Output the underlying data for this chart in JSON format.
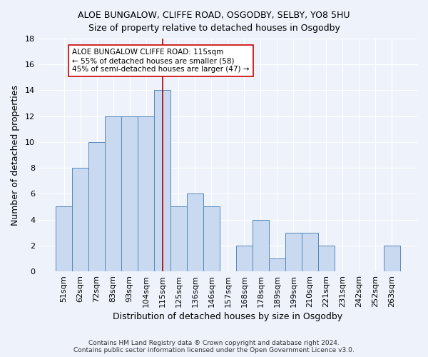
{
  "title1": "ALOE BUNGALOW, CLIFFE ROAD, OSGODBY, SELBY, YO8 5HU",
  "title2": "Size of property relative to detached houses in Osgodby",
  "xlabel": "Distribution of detached houses by size in Osgodby",
  "ylabel": "Number of detached properties",
  "categories": [
    "51sqm",
    "62sqm",
    "72sqm",
    "83sqm",
    "93sqm",
    "104sqm",
    "115sqm",
    "125sqm",
    "136sqm",
    "146sqm",
    "157sqm",
    "168sqm",
    "178sqm",
    "189sqm",
    "199sqm",
    "210sqm",
    "221sqm",
    "231sqm",
    "242sqm",
    "252sqm",
    "263sqm"
  ],
  "values": [
    5,
    8,
    10,
    12,
    12,
    12,
    14,
    5,
    6,
    5,
    0,
    2,
    4,
    1,
    3,
    3,
    2,
    0,
    0,
    0,
    2
  ],
  "bar_color": "#c9d9f0",
  "bar_edge_color": "#5588bb",
  "vline_x_index": 6,
  "vline_color": "#aa0000",
  "annotation_line1": "ALOE BUNGALOW CLIFFE ROAD: 115sqm",
  "annotation_line2": "← 55% of detached houses are smaller (58)",
  "annotation_line3": "45% of semi-detached houses are larger (47) →",
  "annotation_box_color": "white",
  "annotation_box_edge": "#cc0000",
  "ylim": [
    0,
    18
  ],
  "yticks": [
    0,
    2,
    4,
    6,
    8,
    10,
    12,
    14,
    16,
    18
  ],
  "footer_line1": "Contains HM Land Registry data ® Crown copyright and database right 2024.",
  "footer_line2": "Contains public sector information licensed under the Open Government Licence v3.0.",
  "background_color": "#edf2fb",
  "grid_color": "#d8e4f0",
  "title1_fontsize": 9,
  "title2_fontsize": 9,
  "xlabel_fontsize": 9,
  "ylabel_fontsize": 9
}
